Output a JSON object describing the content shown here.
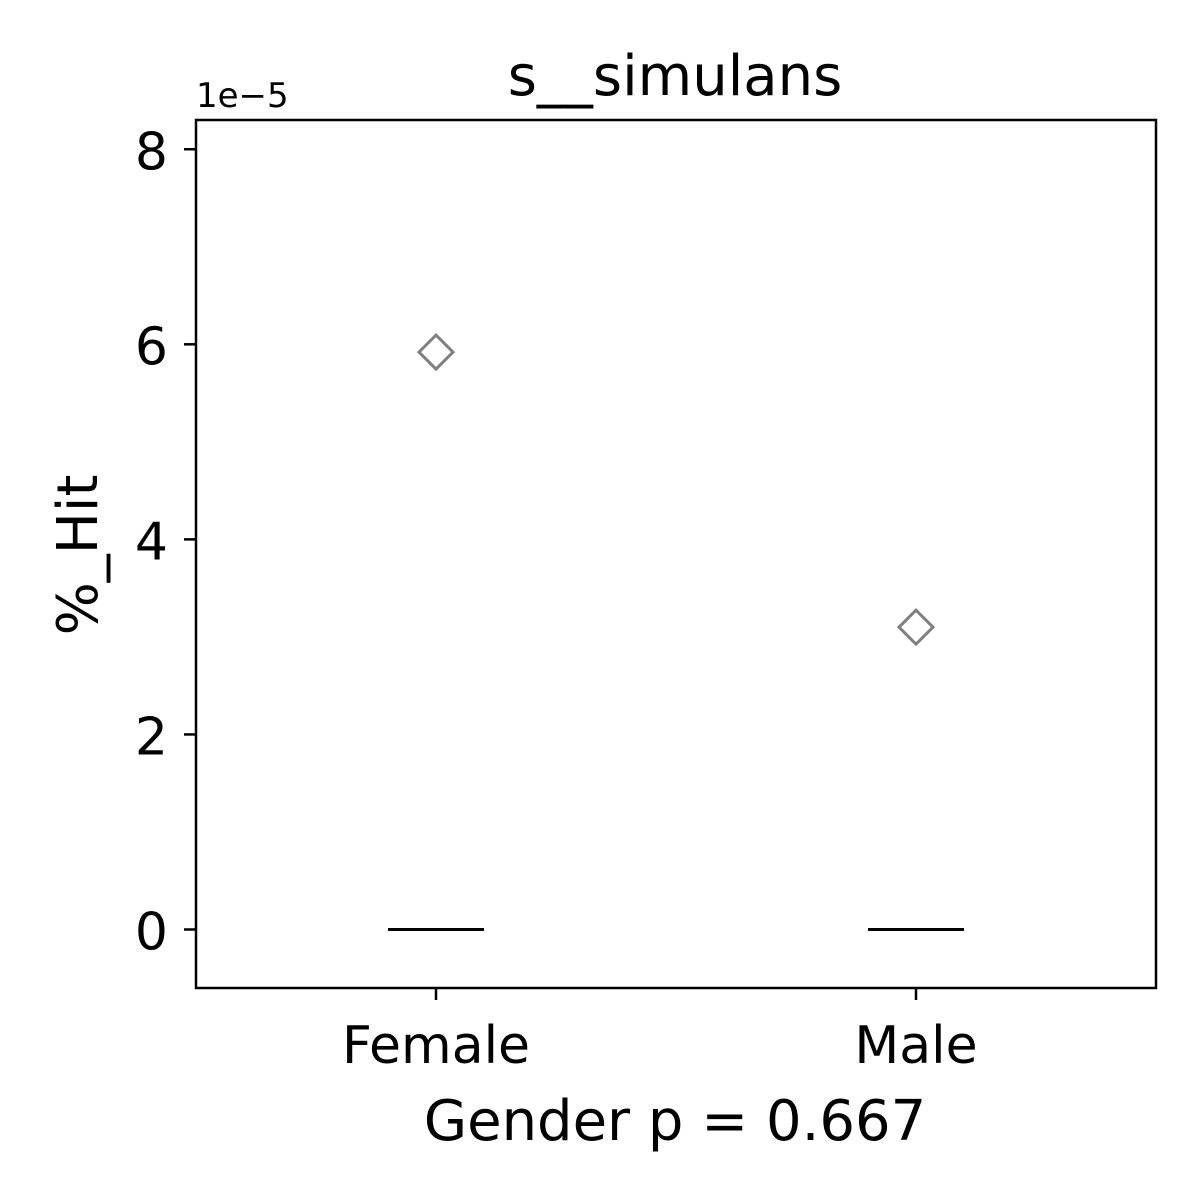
{
  "chart_data": {
    "type": "box",
    "title": "s__simulans",
    "xlabel": "Gender p = 0.667",
    "ylabel": "%_Hit",
    "y_offset_label": "1e−5",
    "y_scale": 1e-05,
    "categories": [
      "Female",
      "Male"
    ],
    "ylim": [
      -6e-06,
      8.3e-05
    ],
    "yticks": [
      0,
      2e-05,
      4e-05,
      6e-05,
      8e-05
    ],
    "ytick_labels": [
      "0",
      "2",
      "4",
      "6",
      "8"
    ],
    "medians": [
      0,
      0
    ],
    "outliers": [
      {
        "category": "Female",
        "value": 5.92e-05
      },
      {
        "category": "Male",
        "value": 3.1e-05
      }
    ],
    "grid": false,
    "colors": {
      "median": "#000000",
      "outlier": "#808080",
      "axes": "#000000"
    }
  }
}
